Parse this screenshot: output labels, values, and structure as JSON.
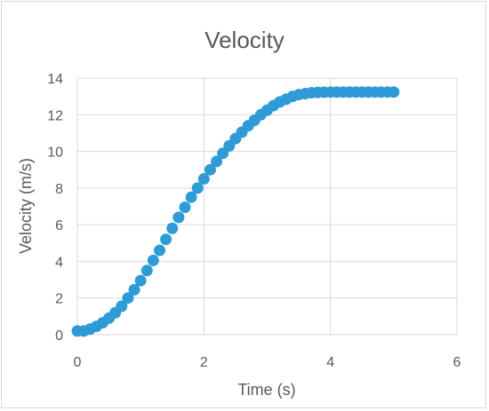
{
  "chart_data": {
    "type": "scatter",
    "title": "Velocity",
    "xlabel": "Time (s)",
    "ylabel": "Velocity (m/s)",
    "xlim": [
      0,
      6
    ],
    "ylim": [
      0,
      14
    ],
    "x_ticks": [
      "0",
      "2",
      "4",
      "6"
    ],
    "y_ticks": [
      "0",
      "2",
      "4",
      "6",
      "8",
      "10",
      "12",
      "14"
    ],
    "grid": true,
    "legend": "none",
    "series": [
      {
        "color": "#2e9bd6",
        "x": [
          0.0,
          0.1,
          0.2,
          0.3,
          0.4,
          0.5,
          0.6,
          0.7,
          0.8,
          0.9,
          1.0,
          1.1,
          1.2,
          1.3,
          1.4,
          1.5,
          1.6,
          1.7,
          1.8,
          1.9,
          2.0,
          2.1,
          2.2,
          2.3,
          2.4,
          2.5,
          2.6,
          2.7,
          2.8,
          2.9,
          3.0,
          3.1,
          3.2,
          3.3,
          3.4,
          3.5,
          3.6,
          3.7,
          3.8,
          3.9,
          4.0,
          4.1,
          4.2,
          4.3,
          4.4,
          4.5,
          4.6,
          4.7,
          4.8,
          4.9,
          5.0
        ],
        "y": [
          0.2,
          0.2,
          0.3,
          0.45,
          0.65,
          0.9,
          1.2,
          1.55,
          2.0,
          2.45,
          2.95,
          3.5,
          4.05,
          4.6,
          5.2,
          5.8,
          6.4,
          6.95,
          7.5,
          8.0,
          8.5,
          9.0,
          9.45,
          9.9,
          10.3,
          10.7,
          11.05,
          11.4,
          11.7,
          12.0,
          12.25,
          12.5,
          12.7,
          12.85,
          13.0,
          13.1,
          13.15,
          13.2,
          13.22,
          13.23,
          13.24,
          13.24,
          13.24,
          13.24,
          13.24,
          13.24,
          13.24,
          13.24,
          13.24,
          13.24,
          13.24
        ]
      }
    ]
  }
}
